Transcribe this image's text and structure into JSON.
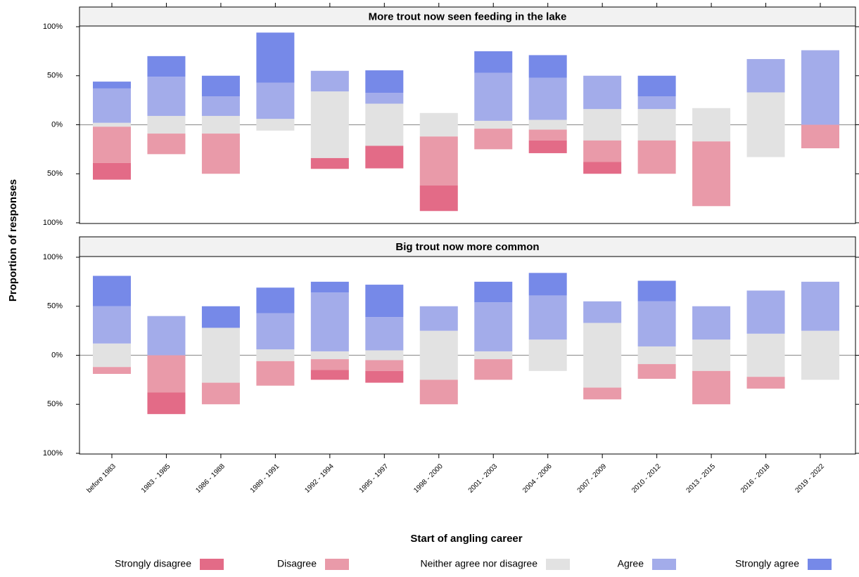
{
  "chart_data": {
    "type": "diverging_bar",
    "panel_titles": [
      "More trout now seen feeding in the lake",
      "Big trout now more common"
    ],
    "x_label": "Start of angling career",
    "y_label": "Proportion of responses",
    "categories": [
      "before 1983",
      "1983 - 1985",
      "1986 - 1988",
      "1989 - 1991",
      "1992 - 1994",
      "1995 - 1997",
      "1998 - 2000",
      "2001 - 2003",
      "2004 - 2006",
      "2007 - 2009",
      "2010 - 2012",
      "2013 - 2015",
      "2016 - 2018",
      "2019 - 2022"
    ],
    "ylim": [
      -100,
      100
    ],
    "yticks": [
      {
        "value": -100,
        "label": "100%"
      },
      {
        "value": -50,
        "label": "50%"
      },
      {
        "value": 0,
        "label": "0%"
      },
      {
        "value": 50,
        "label": "50%"
      },
      {
        "value": 100,
        "label": "100%"
      }
    ],
    "series": [
      {
        "name": "Strongly disagree",
        "color": "#e36b87",
        "values": [
          [
            17,
            0,
            0,
            0,
            11,
            23,
            26,
            0,
            13,
            12,
            0,
            0,
            0,
            0
          ],
          [
            0,
            22,
            0,
            0,
            10,
            12,
            0,
            0,
            0,
            0,
            0,
            0,
            0,
            0
          ]
        ]
      },
      {
        "name": "Disagree",
        "color": "#e99aa9",
        "values": [
          [
            37,
            21,
            41,
            0,
            0,
            0,
            50,
            21,
            11,
            22,
            34,
            66,
            0,
            24
          ],
          [
            7,
            38,
            22,
            25,
            11,
            11,
            25,
            21,
            0,
            12,
            15,
            34,
            12,
            0
          ]
        ]
      },
      {
        "name": "Neither agree nor disagree",
        "color": "#e2e2e2",
        "values": [
          [
            4,
            18,
            18,
            12,
            68,
            43,
            24,
            8,
            10,
            32,
            32,
            34,
            66,
            0
          ],
          [
            24,
            0,
            56,
            12,
            8,
            10,
            50,
            8,
            32,
            66,
            18,
            32,
            44,
            50
          ]
        ]
      },
      {
        "name": "Agree",
        "color": "#a3acea",
        "values": [
          [
            35,
            40,
            20,
            37,
            21,
            11,
            0,
            49,
            43,
            34,
            13,
            0,
            34,
            76
          ],
          [
            38,
            40,
            0,
            37,
            60,
            34,
            25,
            50,
            45,
            22,
            46,
            34,
            44,
            50
          ]
        ]
      },
      {
        "name": "Strongly agree",
        "color": "#7689e8",
        "values": [
          [
            7,
            21,
            21,
            51,
            0,
            23,
            0,
            22,
            23,
            0,
            21,
            0,
            0,
            0
          ],
          [
            31,
            0,
            22,
            26,
            11,
            33,
            0,
            21,
            23,
            0,
            21,
            0,
            0,
            0
          ]
        ]
      }
    ]
  }
}
